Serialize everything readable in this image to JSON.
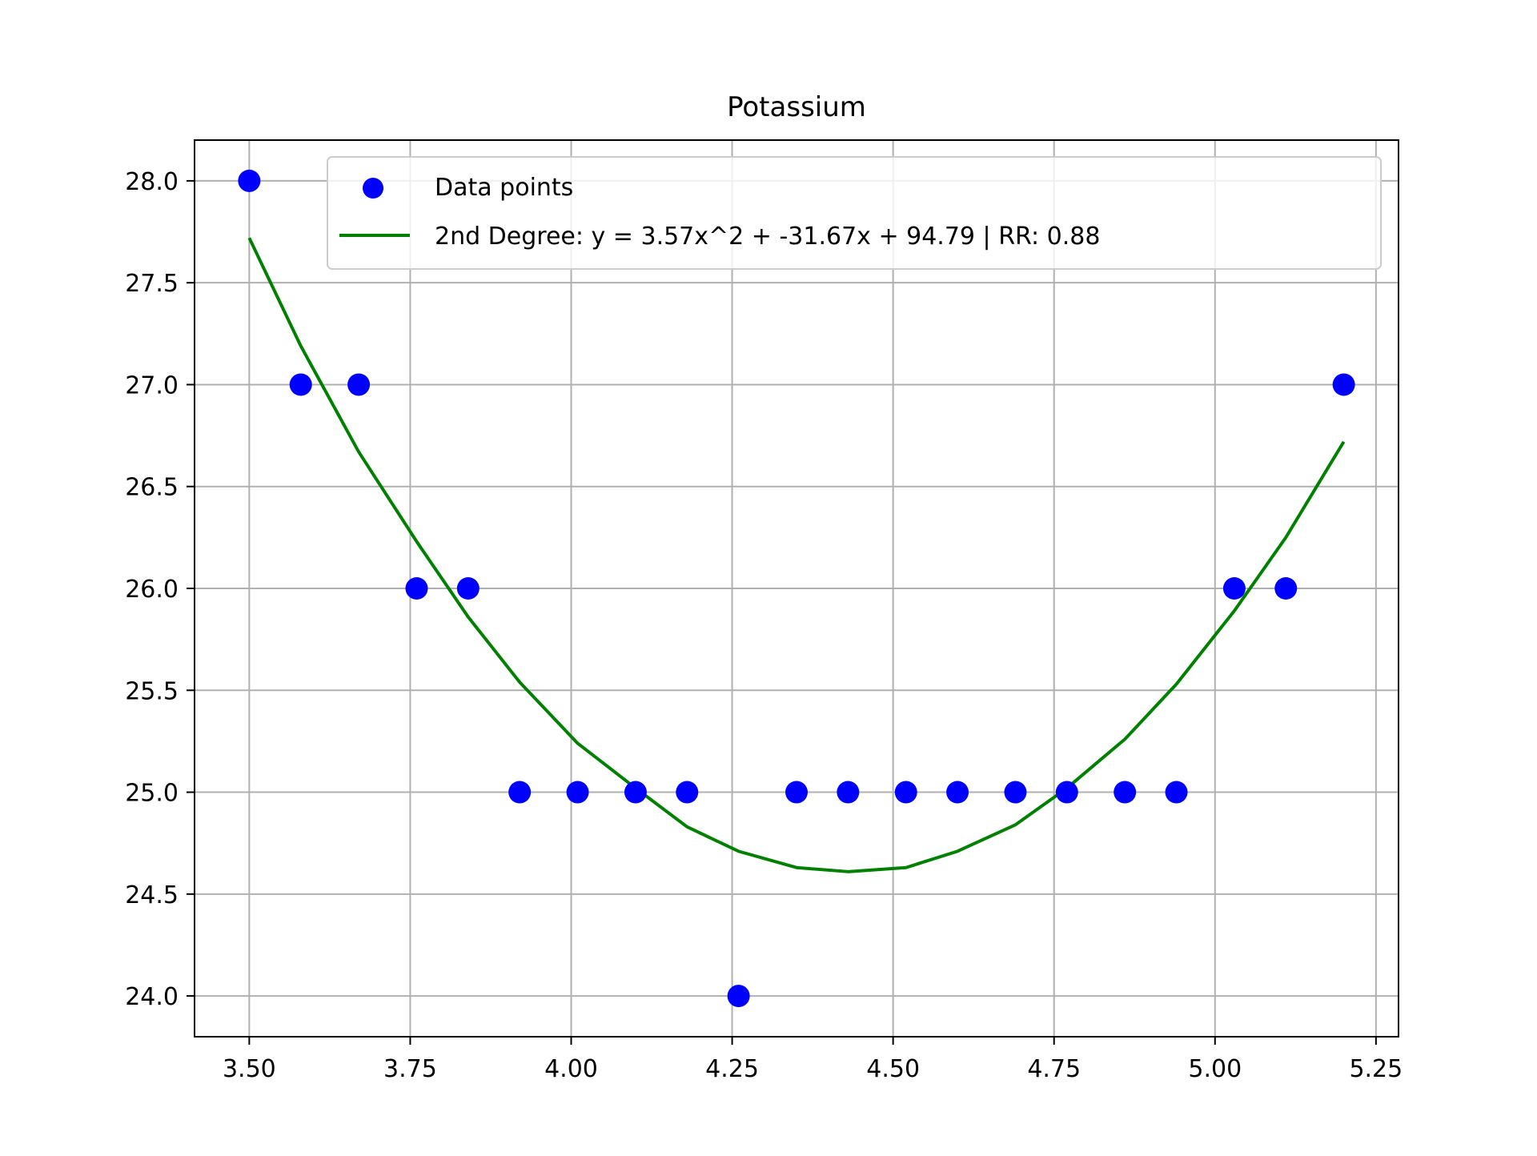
{
  "chart_data": {
    "type": "scatter",
    "title": "Potassium",
    "xlabel": "",
    "ylabel": "",
    "xlim": [
      3.415,
      5.285
    ],
    "ylim": [
      23.8,
      28.2
    ],
    "x_ticks": [
      "3.50",
      "3.75",
      "4.00",
      "4.25",
      "4.50",
      "4.75",
      "5.00",
      "5.25"
    ],
    "y_ticks": [
      "24.0",
      "24.5",
      "25.0",
      "25.5",
      "26.0",
      "26.5",
      "27.0",
      "27.5",
      "28.0"
    ],
    "grid": true,
    "legend_position": "top-right",
    "series": [
      {
        "name": "Data points",
        "kind": "scatter",
        "color": "#0000ff",
        "x": [
          3.5,
          3.58,
          3.67,
          3.76,
          3.84,
          3.92,
          4.01,
          4.1,
          4.18,
          4.26,
          4.35,
          4.43,
          4.52,
          4.6,
          4.69,
          4.77,
          4.86,
          4.94,
          5.03,
          5.11,
          5.2
        ],
        "y": [
          28,
          27,
          27,
          26,
          26,
          25,
          25,
          25,
          25,
          24,
          25,
          25,
          25,
          25,
          25,
          25,
          25,
          25,
          26,
          26,
          27
        ]
      },
      {
        "name": "2nd Degree: y = 3.57x^2 + -31.67x + 94.79 | RR: 0.88",
        "kind": "line",
        "color": "#008000",
        "x": [
          3.5,
          3.58,
          3.67,
          3.76,
          3.84,
          3.92,
          4.01,
          4.1,
          4.18,
          4.26,
          4.35,
          4.43,
          4.52,
          4.6,
          4.69,
          4.77,
          4.86,
          4.94,
          5.03,
          5.11,
          5.2
        ],
        "y": [
          27.72,
          27.19,
          26.67,
          26.23,
          25.86,
          25.54,
          25.24,
          25.02,
          24.83,
          24.71,
          24.63,
          24.61,
          24.63,
          24.71,
          24.84,
          25.02,
          25.26,
          25.53,
          25.89,
          26.25,
          26.72
        ]
      }
    ]
  }
}
